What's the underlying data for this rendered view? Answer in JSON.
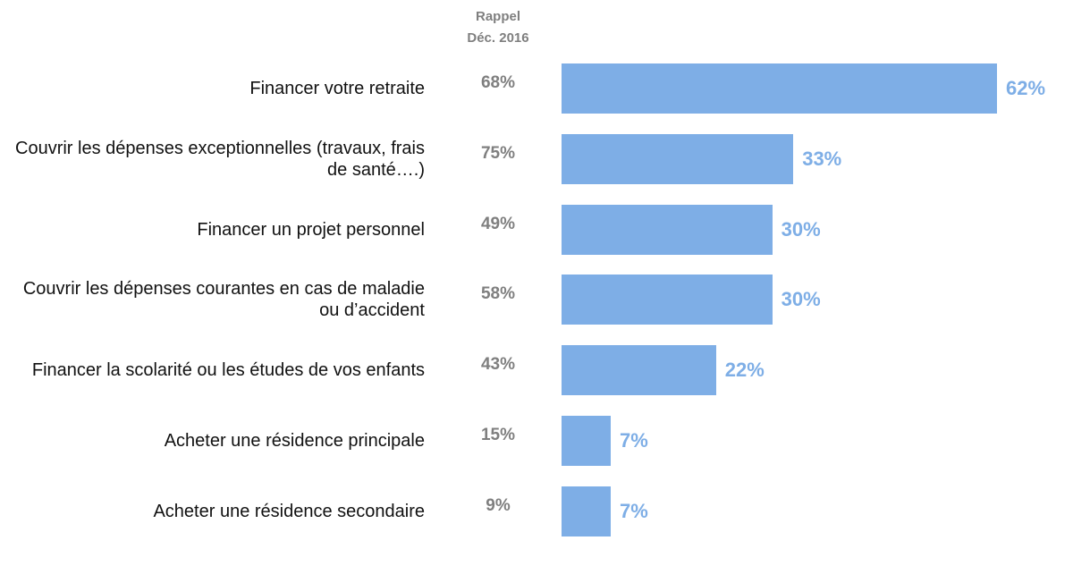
{
  "chart_data": {
    "type": "bar",
    "orientation": "horizontal",
    "recall": {
      "header": [
        "Rappel",
        "Déc. 2016"
      ],
      "labels": [
        "68%",
        "75%",
        "49%",
        "58%",
        "43%",
        "15%",
        "9%"
      ]
    },
    "categories": [
      "Financer votre retraite",
      "Couvrir les dépenses exceptionnelles (travaux, frais de santé….)",
      "Financer un projet personnel",
      "Couvrir les dépenses courantes en cas de maladie ou d’accident",
      "Financer la scolarité ou les études de vos enfants",
      "Acheter une résidence principale",
      "Acheter une résidence secondaire"
    ],
    "values": [
      62,
      33,
      30,
      30,
      22,
      7,
      7
    ],
    "value_labels": [
      "62%",
      "33%",
      "30%",
      "30%",
      "22%",
      "7%",
      "7%"
    ],
    "color": "#7eaee6"
  }
}
